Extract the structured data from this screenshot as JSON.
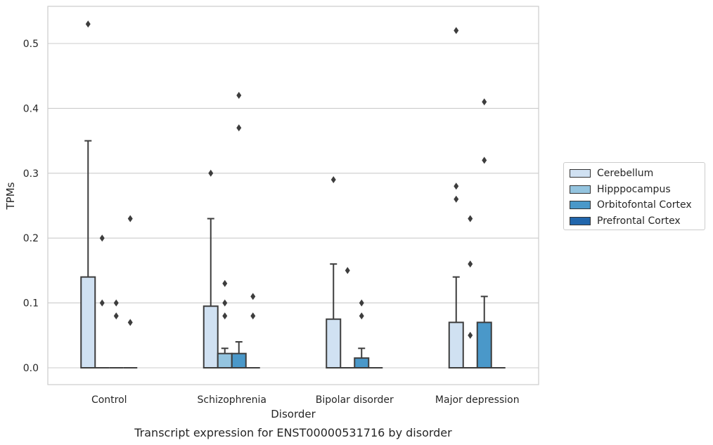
{
  "chart_data": {
    "type": "box",
    "caption": "Transcript expression for ENST00000531716 by disorder",
    "xlabel": "Disorder",
    "ylabel": "TPMs",
    "ylim": [
      -0.025,
      0.558
    ],
    "yticks": [
      0.0,
      0.1,
      0.2,
      0.3,
      0.4,
      0.5
    ],
    "ytick_labels": [
      "0.0",
      "0.1",
      "0.2",
      "0.3",
      "0.4",
      "0.5"
    ],
    "grid": true,
    "legend_position": "right",
    "categories": [
      "Control",
      "Schizophrenia",
      "Bipolar disorder",
      "Major depression"
    ],
    "series": [
      {
        "name": "Cerebellum",
        "color": "#d0e1f2",
        "boxes": [
          {
            "q1": 0.0,
            "median": 0.0,
            "q3": 0.14,
            "whisker_low": 0.0,
            "whisker_high": 0.35,
            "outliers": [
              0.53
            ]
          },
          {
            "q1": 0.0,
            "median": 0.0,
            "q3": 0.095,
            "whisker_low": 0.0,
            "whisker_high": 0.23,
            "outliers": [
              0.3
            ]
          },
          {
            "q1": 0.0,
            "median": 0.0,
            "q3": 0.075,
            "whisker_low": 0.0,
            "whisker_high": 0.16,
            "outliers": [
              0.29
            ]
          },
          {
            "q1": 0.0,
            "median": 0.0,
            "q3": 0.07,
            "whisker_low": 0.0,
            "whisker_high": 0.14,
            "outliers": [
              0.52,
              0.28,
              0.26
            ]
          }
        ]
      },
      {
        "name": "Hipppocampus",
        "color": "#94c4df",
        "boxes": [
          {
            "q1": 0.0,
            "median": 0.0,
            "q3": 0.0,
            "whisker_low": 0.0,
            "whisker_high": 0.0,
            "outliers": [
              0.2,
              0.1
            ]
          },
          {
            "q1": 0.0,
            "median": 0.0,
            "q3": 0.022,
            "whisker_low": 0.0,
            "whisker_high": 0.03,
            "outliers": [
              0.13,
              0.1,
              0.08
            ]
          },
          {
            "q1": 0.0,
            "median": 0.0,
            "q3": 0.0,
            "whisker_low": 0.0,
            "whisker_high": 0.0,
            "outliers": [
              0.15
            ]
          },
          {
            "q1": 0.0,
            "median": 0.0,
            "q3": 0.0,
            "whisker_low": 0.0,
            "whisker_high": 0.0,
            "outliers": [
              0.23,
              0.16,
              0.05
            ]
          }
        ]
      },
      {
        "name": "Orbitofontal Cortex",
        "color": "#4a98c9",
        "boxes": [
          {
            "q1": 0.0,
            "median": 0.0,
            "q3": 0.0,
            "whisker_low": 0.0,
            "whisker_high": 0.0,
            "outliers": [
              0.1,
              0.08
            ]
          },
          {
            "q1": 0.0,
            "median": 0.0,
            "q3": 0.022,
            "whisker_low": 0.0,
            "whisker_high": 0.04,
            "outliers": [
              0.42,
              0.37
            ]
          },
          {
            "q1": 0.0,
            "median": 0.0,
            "q3": 0.015,
            "whisker_low": 0.0,
            "whisker_high": 0.03,
            "outliers": [
              0.1,
              0.08
            ]
          },
          {
            "q1": 0.0,
            "median": 0.0,
            "q3": 0.07,
            "whisker_low": 0.0,
            "whisker_high": 0.11,
            "outliers": [
              0.41,
              0.32
            ]
          }
        ]
      },
      {
        "name": "Prefrontal Cortex",
        "color": "#2166ac",
        "boxes": [
          {
            "q1": 0.0,
            "median": 0.0,
            "q3": 0.0,
            "whisker_low": 0.0,
            "whisker_high": 0.0,
            "outliers": [
              0.23,
              0.07
            ]
          },
          {
            "q1": 0.0,
            "median": 0.0,
            "q3": 0.0,
            "whisker_low": 0.0,
            "whisker_high": 0.0,
            "outliers": [
              0.11,
              0.08
            ]
          },
          {
            "q1": 0.0,
            "median": 0.0,
            "q3": 0.0,
            "whisker_low": 0.0,
            "whisker_high": 0.0,
            "outliers": []
          },
          {
            "q1": 0.0,
            "median": 0.0,
            "q3": 0.0,
            "whisker_low": 0.0,
            "whisker_high": 0.0,
            "outliers": []
          }
        ]
      }
    ]
  }
}
